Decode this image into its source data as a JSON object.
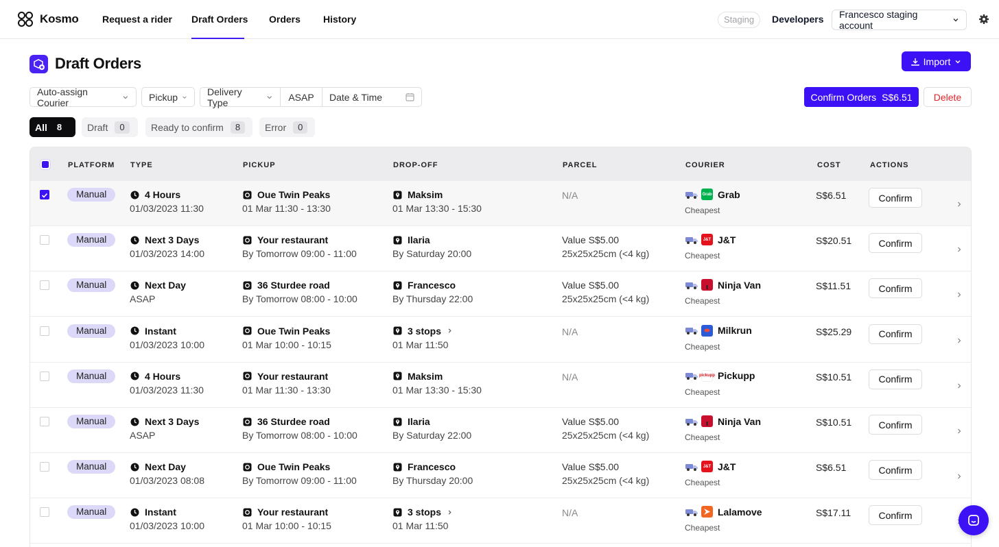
{
  "app": {
    "name": "Kosmo",
    "environment": "Staging",
    "developers_label": "Developers",
    "account": "Francesco staging account"
  },
  "nav": [
    {
      "label": "Request a rider",
      "active": false
    },
    {
      "label": "Draft Orders",
      "active": true
    },
    {
      "label": "Orders",
      "active": false
    },
    {
      "label": "History",
      "active": false
    }
  ],
  "page": {
    "title": "Draft Orders",
    "import_label": "Import"
  },
  "filters": {
    "auto_assign": "Auto-assign Courier",
    "pickup": "Pickup",
    "delivery_type": "Delivery Type",
    "asap": "ASAP",
    "date_time": "Date & Time"
  },
  "actions": {
    "confirm_orders": "Confirm Orders",
    "confirm_total": "S$6.51",
    "delete": "Delete"
  },
  "status_tabs": [
    {
      "label": "All",
      "count": "8",
      "active": true
    },
    {
      "label": "Draft",
      "count": "0",
      "active": false
    },
    {
      "label": "Ready to confirm",
      "count": "8",
      "active": false
    },
    {
      "label": "Error",
      "count": "0",
      "active": false
    }
  ],
  "table": {
    "headers": {
      "platform": "PLATFORM",
      "type": "TYPE",
      "pickup": "PICKUP",
      "dropoff": "DROP-OFF",
      "parcel": "PARCEL",
      "courier": "COURIER",
      "cost": "COST",
      "actions": "ACTIONS"
    },
    "confirm_label": "Confirm",
    "rows": [
      {
        "selected": true,
        "platform": "Manual",
        "type": "4 Hours",
        "type_time": "01/03/2023 11:30",
        "pickup": "Oue Twin Peaks",
        "pickup_time": "01 Mar 11:30 - 13:30",
        "dropoff": "Maksim",
        "dropoff_time": "01 Mar 13:30 - 15:30",
        "dropoff_more": false,
        "parcel_value": "N/A",
        "parcel_size": "",
        "courier": "Grab",
        "courier_logo": "grab-logo",
        "courier_color": "#00b14f",
        "courier_note": "Cheapest",
        "cost": "S$6.51"
      },
      {
        "selected": false,
        "platform": "Manual",
        "type": "Next 3 Days",
        "type_time": "01/03/2023 14:00",
        "pickup": "Your restaurant",
        "pickup_time": "By Tomorrow 09:00 - 11:00",
        "dropoff": "Ilaria",
        "dropoff_time": "By Saturday 20:00",
        "dropoff_more": false,
        "parcel_value": "Value S$5.00",
        "parcel_size": "25x25x25cm (<4 kg)",
        "courier": "J&T",
        "courier_logo": "jnt-logo",
        "courier_color": "#e3121b",
        "courier_note": "Cheapest",
        "cost": "S$20.51"
      },
      {
        "selected": false,
        "platform": "Manual",
        "type": "Next Day",
        "type_time": "ASAP",
        "pickup": "36 Sturdee road",
        "pickup_time": "By Tomorrow 08:00 - 10:00",
        "dropoff": "Francesco",
        "dropoff_time": "By Thursday 22:00",
        "dropoff_more": false,
        "parcel_value": "Value S$5.00",
        "parcel_size": "25x25x25cm (<4 kg)",
        "courier": "Ninja Van",
        "courier_logo": "ninjavan-logo",
        "courier_color": "#c8102e",
        "courier_note": "Cheapest",
        "cost": "S$11.51"
      },
      {
        "selected": false,
        "platform": "Manual",
        "type": "Instant",
        "type_time": "01/03/2023 10:00",
        "pickup": "Oue Twin Peaks",
        "pickup_time": "01 Mar 10:00 - 10:15",
        "dropoff": "3 stops",
        "dropoff_time": "01 Mar 11:50",
        "dropoff_more": true,
        "parcel_value": "N/A",
        "parcel_size": "",
        "courier": "Milkrun",
        "courier_logo": "milkrun-logo",
        "courier_color": "#2c5bd8",
        "courier_note": "Cheapest",
        "cost": "S$25.29"
      },
      {
        "selected": false,
        "platform": "Manual",
        "type": "4 Hours",
        "type_time": "01/03/2023 11:30",
        "pickup": "Your restaurant",
        "pickup_time": "01 Mar 11:30 - 13:30",
        "dropoff": "Maksim",
        "dropoff_time": "01 Mar 13:30 - 15:30",
        "dropoff_more": false,
        "parcel_value": "N/A",
        "parcel_size": "",
        "courier": "Pickupp",
        "courier_logo": "pickupp-logo",
        "courier_color": "#ffffff",
        "courier_note": "Cheapest",
        "cost": "S$10.51"
      },
      {
        "selected": false,
        "platform": "Manual",
        "type": "Next 3 Days",
        "type_time": "ASAP",
        "pickup": "36 Sturdee road",
        "pickup_time": "By Tomorrow 08:00 - 10:00",
        "dropoff": "Ilaria",
        "dropoff_time": "By Saturday 22:00",
        "dropoff_more": false,
        "parcel_value": "Value S$5.00",
        "parcel_size": "25x25x25cm (<4 kg)",
        "courier": "Ninja Van",
        "courier_logo": "ninjavan-logo",
        "courier_color": "#c8102e",
        "courier_note": "Cheapest",
        "cost": "S$10.51"
      },
      {
        "selected": false,
        "platform": "Manual",
        "type": "Next Day",
        "type_time": "01/03/2023 08:08",
        "pickup": "Oue Twin Peaks",
        "pickup_time": "By Tomorrow 09:00 - 11:00",
        "dropoff": "Francesco",
        "dropoff_time": "By Thursday 20:00",
        "dropoff_more": false,
        "parcel_value": "Value S$5.00",
        "parcel_size": "25x25x25cm (<4 kg)",
        "courier": "J&T",
        "courier_logo": "jnt-logo",
        "courier_color": "#e3121b",
        "courier_note": "Cheapest",
        "cost": "S$6.51"
      },
      {
        "selected": false,
        "platform": "Manual",
        "type": "Instant",
        "type_time": "01/03/2023 10:00",
        "pickup": "Your restaurant",
        "pickup_time": "01 Mar 10:00 - 10:15",
        "dropoff": "3 stops",
        "dropoff_time": "01 Mar 11:50",
        "dropoff_more": true,
        "parcel_value": "N/A",
        "parcel_size": "",
        "courier": "Lalamove",
        "courier_logo": "lalamove-logo",
        "courier_color": "#f16622",
        "courier_note": "Cheapest",
        "cost": "S$17.11"
      }
    ]
  },
  "colors": {
    "accent": "#3d11f5",
    "delete": "#e0262b",
    "platform_badge": "#dcd8f8"
  }
}
